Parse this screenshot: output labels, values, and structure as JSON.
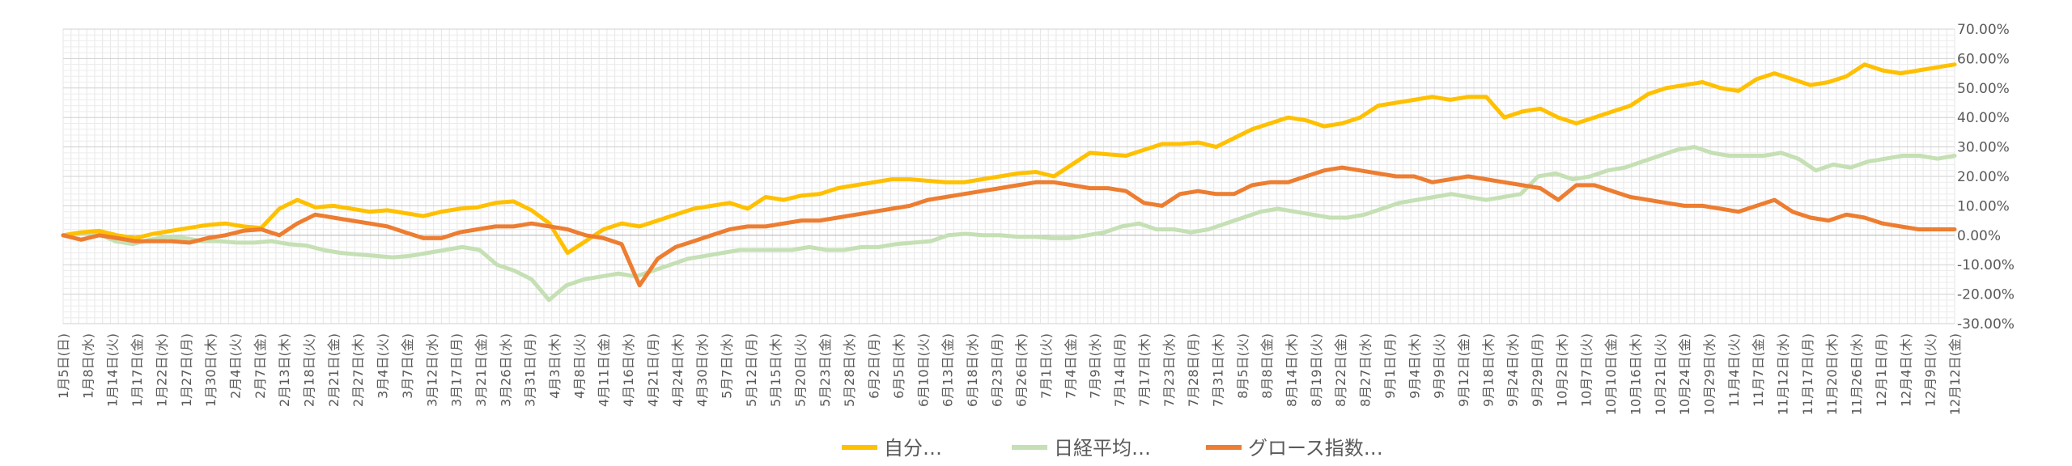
{
  "chart_data": {
    "type": "line",
    "title": "",
    "xlabel": "",
    "ylabel": "",
    "ylim": [
      -30,
      70
    ],
    "y_tick_step": 10,
    "y_tick_labels": [
      "70.00%",
      "60.00%",
      "50.00%",
      "40.00%",
      "30.00%",
      "20.00%",
      "10.00%",
      "0.00%",
      "-10.00%",
      "-20.00%",
      "-30.00%"
    ],
    "grid": true,
    "legend_position": "bottom",
    "x_tick_labels": [
      "1月5日(日)",
      "1月8日(水)",
      "1月14日(火)",
      "1月17日(金)",
      "1月22日(水)",
      "1月27日(月)",
      "1月30日(木)",
      "2月4日(火)",
      "2月7日(金)",
      "2月13日(木)",
      "2月18日(火)",
      "2月21日(金)",
      "2月27日(木)",
      "3月4日(火)",
      "3月7日(金)",
      "3月12日(水)",
      "3月17日(月)",
      "3月21日(金)",
      "3月26日(水)",
      "3月31日(月)",
      "4月3日(木)",
      "4月8日(火)",
      "4月11日(金)",
      "4月16日(水)",
      "4月21日(月)",
      "4月24日(木)",
      "4月30日(水)",
      "5月7日(水)",
      "5月12日(月)",
      "5月15日(木)",
      "5月20日(火)",
      "5月23日(金)",
      "5月28日(水)",
      "6月2日(月)",
      "6月5日(木)",
      "6月10日(火)",
      "6月13日(金)",
      "6月18日(水)",
      "6月23日(月)",
      "6月26日(木)",
      "7月1日(火)",
      "7月4日(金)",
      "7月9日(水)",
      "7月14日(月)",
      "7月17日(木)",
      "7月23日(水)",
      "7月28日(月)",
      "7月31日(木)",
      "8月5日(火)",
      "8月8日(金)",
      "8月14日(木)",
      "8月19日(火)",
      "8月22日(金)",
      "8月27日(水)",
      "9月1日(月)",
      "9月4日(木)",
      "9月9日(火)",
      "9月12日(金)",
      "9月18日(木)",
      "9月24日(水)",
      "9月29日(月)",
      "10月2日(木)",
      "10月7日(火)",
      "10月10日(金)",
      "10月16日(木)",
      "10月21日(火)",
      "10月24日(金)",
      "10月29日(水)",
      "11月4日(火)",
      "11月7日(金)",
      "11月12日(水)",
      "11月17日(月)",
      "11月20日(木)",
      "11月26日(水)",
      "12月1日(月)",
      "12月4日(木)",
      "12月9日(火)",
      "12月12日(金)"
    ],
    "series": [
      {
        "name": "自分…",
        "color": "#FFC000",
        "values": [
          0,
          1,
          1.5,
          0,
          -1,
          0.5,
          1.5,
          2.5,
          3.5,
          4,
          3,
          2.5,
          9,
          12,
          9.5,
          10,
          9,
          8,
          8.5,
          7.5,
          6.5,
          8,
          9,
          9.5,
          11,
          11.5,
          8.5,
          4,
          -6,
          -2,
          2,
          4,
          3,
          5,
          7,
          9,
          10,
          11,
          9,
          13,
          12,
          13.5,
          14,
          16,
          17,
          18,
          19,
          19,
          18.5,
          18,
          18,
          19,
          20,
          21,
          21.5,
          20,
          24,
          28,
          27.5,
          27,
          29,
          31,
          31,
          31.5,
          30,
          33,
          36,
          38,
          40,
          39,
          37,
          38,
          40,
          44,
          45,
          46,
          47,
          46,
          47,
          47,
          40,
          42,
          43,
          40,
          38,
          40,
          42,
          44,
          48,
          50,
          51,
          52,
          50,
          49,
          53,
          55,
          53,
          51,
          52,
          54,
          58,
          56,
          55,
          56,
          57,
          58
        ]
      },
      {
        "name": "日経平均…",
        "color": "#C5E0B4",
        "values": [
          0,
          1,
          0.5,
          -2,
          -3,
          -1.5,
          -0.5,
          -1,
          -2,
          -2,
          -2.5,
          -2.5,
          -2,
          -3,
          -3.5,
          -5,
          -6,
          -6.5,
          -7,
          -7.5,
          -7,
          -6,
          -5,
          -4,
          -5,
          -10,
          -12,
          -15,
          -22,
          -17,
          -15,
          -14,
          -13,
          -14,
          -12,
          -10,
          -8,
          -7,
          -6,
          -5,
          -5,
          -5,
          -5,
          -4,
          -5,
          -5,
          -4,
          -4,
          -3,
          -2.5,
          -2,
          0,
          0.5,
          0,
          0,
          -0.5,
          -0.5,
          -1,
          -1,
          0,
          1,
          3,
          4,
          2,
          2,
          1,
          2,
          4,
          6,
          8,
          9,
          8,
          7,
          6,
          6,
          7,
          9,
          11,
          12,
          13,
          14,
          13,
          12,
          13,
          14,
          20,
          21,
          19,
          20,
          22,
          23,
          25,
          27,
          29,
          30,
          28,
          27,
          27,
          27,
          28,
          26,
          22,
          24,
          23,
          25,
          26,
          27,
          27,
          26,
          27
        ]
      },
      {
        "name": "グロース指数…",
        "color": "#ED7D31",
        "values": [
          0,
          -1.5,
          0,
          -1,
          -2,
          -2,
          -2,
          -2.5,
          -1,
          0,
          1.5,
          2,
          0,
          4,
          7,
          6,
          5,
          4,
          3,
          1,
          -1,
          -1,
          1,
          2,
          3,
          3,
          4,
          3,
          2,
          0,
          -1,
          -3,
          -17,
          -8,
          -4,
          -2,
          0,
          2,
          3,
          3,
          4,
          5,
          5,
          6,
          7,
          8,
          9,
          10,
          12,
          13,
          14,
          15,
          16,
          17,
          18,
          18,
          17,
          16,
          16,
          15,
          11,
          10,
          14,
          15,
          14,
          14,
          17,
          18,
          18,
          20,
          22,
          23,
          22,
          21,
          20,
          20,
          18,
          19,
          20,
          19,
          18,
          17,
          16,
          12,
          17,
          17,
          15,
          13,
          12,
          11,
          10,
          10,
          9,
          8,
          10,
          12,
          8,
          6,
          5,
          7,
          6,
          4,
          3,
          2,
          2,
          2
        ]
      }
    ]
  }
}
